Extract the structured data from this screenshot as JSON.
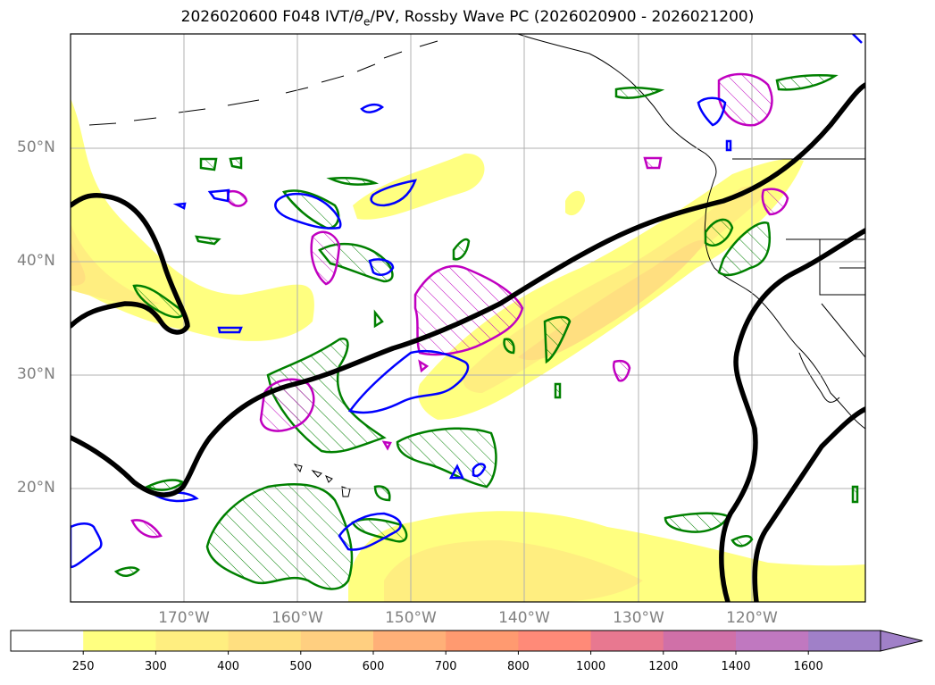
{
  "title": {
    "prefix": "2026020600 F048 IVT/",
    "theta": "θ",
    "theta_sub": "e",
    "suffix": "/PV, Rossby Wave PC (2026020900 - 2026021200)"
  },
  "map": {
    "projection": "cylindrical",
    "lon_range": [
      -180,
      -110
    ],
    "lat_range": [
      10,
      60
    ],
    "lat_labels": [
      "50°N",
      "40°N",
      "30°N",
      "20°N"
    ],
    "lon_labels": [
      "170°W",
      "160°W",
      "150°W",
      "140°W",
      "130°W",
      "120°W"
    ],
    "grid_lats": [
      50,
      40,
      30,
      20
    ],
    "grid_lons": [
      -170,
      -160,
      -150,
      -140,
      -130,
      -120
    ]
  },
  "layers": {
    "ivt": "shaded",
    "rossby_wave_pc": "black contour",
    "theta_e": "green hatched contour",
    "pv": "magenta hatched contour",
    "blue": "blue contour"
  },
  "colorbar": {
    "ticks": [
      "250",
      "300",
      "400",
      "500",
      "600",
      "700",
      "800",
      "1000",
      "1200",
      "1400",
      "1600"
    ],
    "colors": [
      "#ffffff",
      "#ffff80",
      "#ffee80",
      "#ffdf80",
      "#ffcf80",
      "#ffb078",
      "#ff9a70",
      "#ff8a78",
      "#e87890",
      "#d070a8",
      "#c078c0",
      "#a080c8"
    ],
    "extend": "max"
  }
}
